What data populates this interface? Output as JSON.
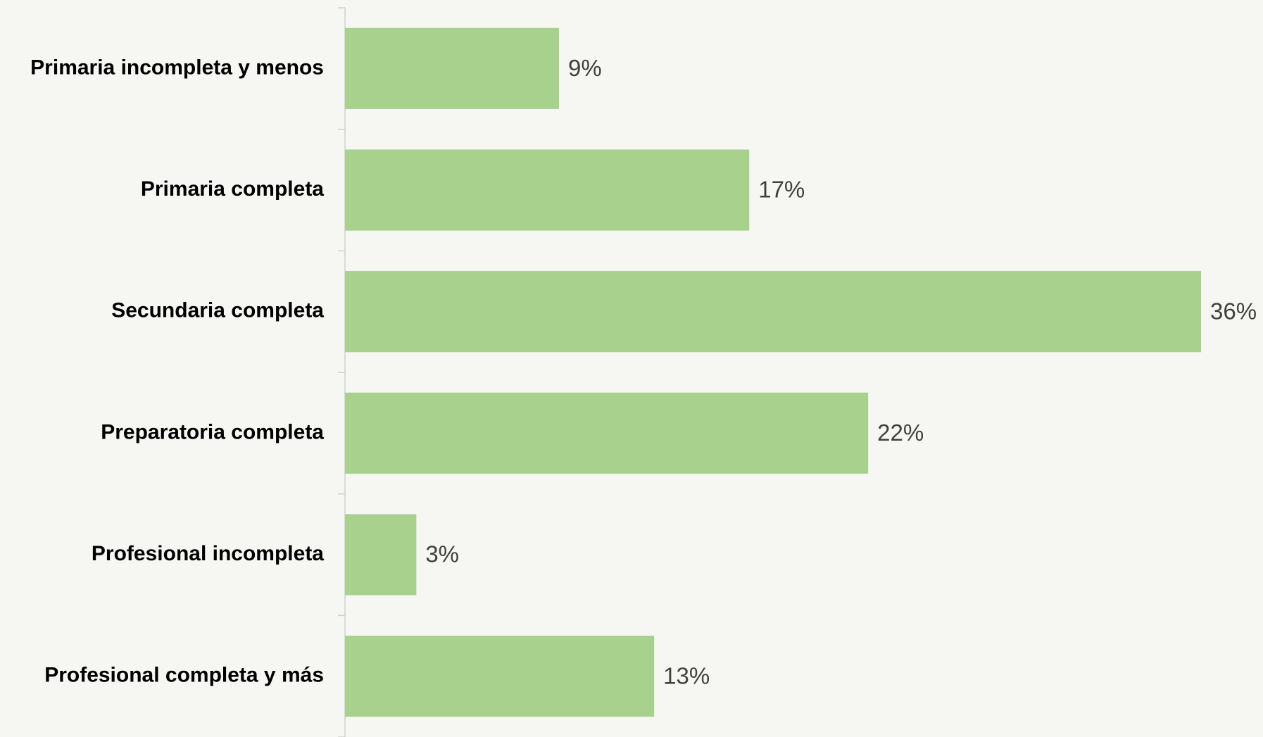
{
  "chart_data": {
    "type": "bar",
    "orientation": "horizontal",
    "categories": [
      "Primaria incompleta y menos",
      "Primaria completa",
      "Secundaria completa",
      "Preparatoria completa",
      "Profesional incompleta",
      "Profesional completa y más"
    ],
    "values": [
      9,
      17,
      36,
      22,
      3,
      13
    ],
    "value_labels": [
      "9%",
      "17%",
      "36%",
      "22%",
      "3%",
      "13%"
    ],
    "color": "#a9d18e"
  }
}
